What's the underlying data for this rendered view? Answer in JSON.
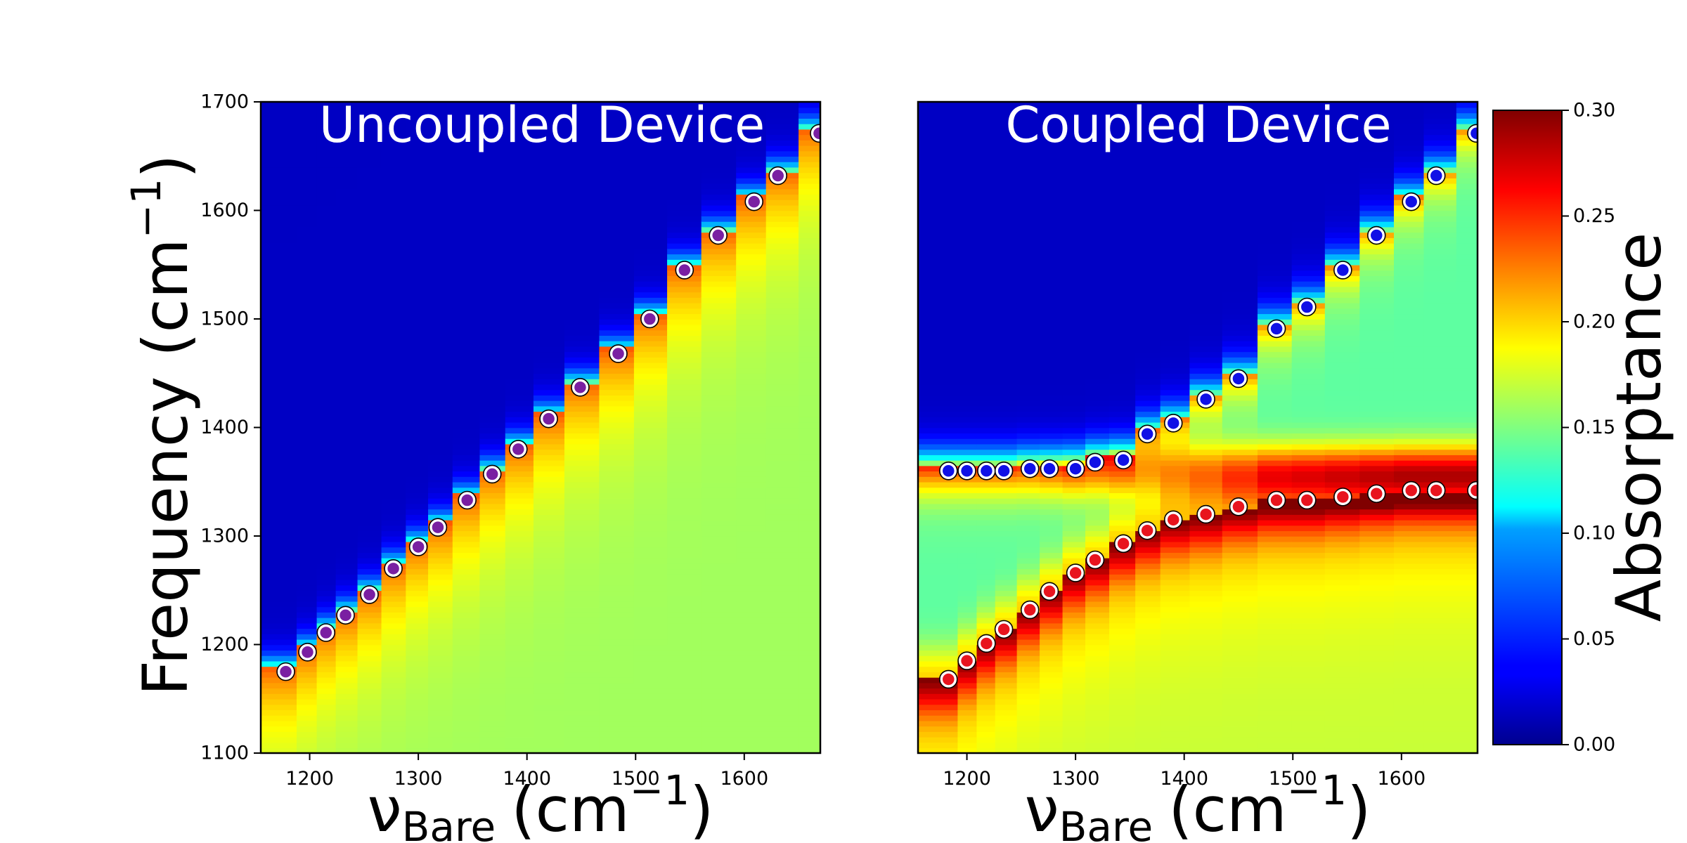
{
  "figure": {
    "colors": {
      "uncoupled_marker": "#7a1fa2",
      "upper_marker": "#1010e6",
      "lower_marker": "#e8141e",
      "marker_edge": "#ffffff",
      "panel_title": "#ffffff",
      "frame": "#000000"
    }
  },
  "colorbar": {
    "label": "Absorptance",
    "range": [
      0,
      0.3
    ],
    "ticks": [
      "0.00",
      "0.05",
      "0.10",
      "0.15",
      "0.20",
      "0.25",
      "0.30"
    ],
    "colormap": "jet"
  },
  "chart_data": [
    {
      "type": "heatmap",
      "title": "Uncoupled Device",
      "xlabel_main": "ν",
      "xlabel_sub": "Bare",
      "xlabel_unit": "(cm",
      "xlabel_exp": "−1",
      "xlabel_close": ")",
      "ylabel": "Frequency (cm",
      "ylabel_exp": "−1",
      "ylabel_close": ")",
      "xlim": [
        1155,
        1670
      ],
      "ylim": [
        1100,
        1700
      ],
      "xticks": [
        "1200",
        "1300",
        "1400",
        "1500",
        "1600"
      ],
      "yticks": [
        "1100",
        "1200",
        "1300",
        "1400",
        "1500",
        "1600",
        "1700"
      ],
      "grid": false,
      "series": [
        {
          "name": "",
          "x": [
            1178,
            1198,
            1215,
            1233,
            1255,
            1277,
            1300,
            1318,
            1345,
            1368,
            1392,
            1420,
            1449,
            1484,
            1513,
            1545,
            1576,
            1609,
            1631,
            1669
          ],
          "y": [
            1175,
            1193,
            1211,
            1227,
            1246,
            1270,
            1290,
            1308,
            1333,
            1357,
            1380,
            1408,
            1437,
            1468,
            1500,
            1545,
            1577,
            1608,
            1632,
            1671
          ]
        }
      ]
    },
    {
      "type": "heatmap",
      "title": "Coupled Device",
      "xlabel_main": "ν",
      "xlabel_sub": "Bare",
      "xlabel_unit": "(cm",
      "xlabel_exp": "−1",
      "xlabel_close": ")",
      "xlim": [
        1155,
        1670
      ],
      "ylim": [
        1100,
        1700
      ],
      "xticks": [
        "1200",
        "1300",
        "1400",
        "1500",
        "1600"
      ],
      "grid": false,
      "vibrational_mode": 1360,
      "series": [
        {
          "name": "",
          "x": [
            1183,
            1200,
            1218,
            1234,
            1258,
            1276,
            1300,
            1318,
            1344,
            1366,
            1390,
            1420,
            1450,
            1485,
            1513,
            1546,
            1577,
            1609,
            1632,
            1669
          ],
          "y": [
            1360,
            1360,
            1360,
            1360,
            1362,
            1362,
            1362,
            1368,
            1370,
            1394,
            1404,
            1426,
            1445,
            1491,
            1511,
            1545,
            1577,
            1608,
            1632,
            1671
          ]
        },
        {
          "name": "",
          "x": [
            1183,
            1200,
            1218,
            1234,
            1258,
            1276,
            1300,
            1318,
            1344,
            1366,
            1390,
            1420,
            1450,
            1485,
            1513,
            1546,
            1577,
            1609,
            1632,
            1669
          ],
          "y": [
            1168,
            1185,
            1201,
            1214,
            1232,
            1249,
            1266,
            1278,
            1293,
            1305,
            1315,
            1320,
            1327,
            1333,
            1333,
            1336,
            1339,
            1342,
            1342,
            1342
          ]
        }
      ]
    }
  ]
}
